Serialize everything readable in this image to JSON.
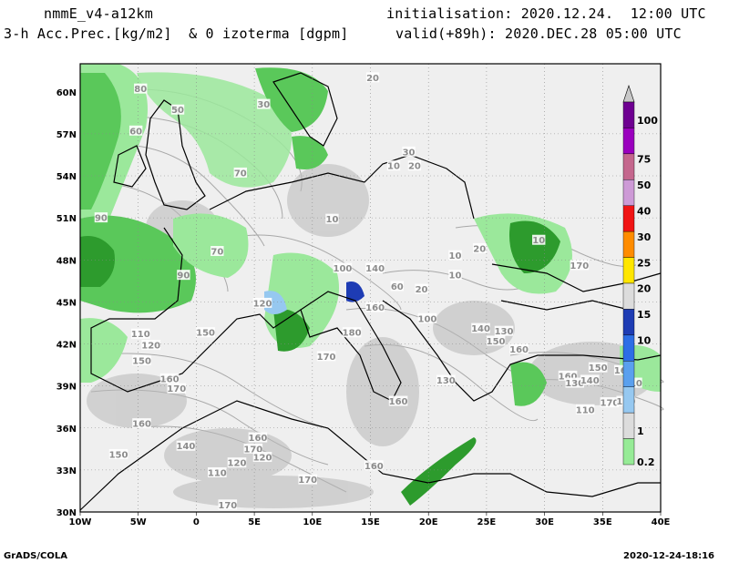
{
  "header": {
    "model": "nmmE_v4-a12km",
    "field": "3-h Acc.Prec.[kg/m2]  & 0 izoterma [dgpm]",
    "init": "initialisation: 2020.12.24.  12:00 UTC",
    "valid": "valid(+89h): 2020.DEC.28 05:00 UTC"
  },
  "footer": {
    "left": "GrADS/COLA",
    "right": "2020-12-24-18:16"
  },
  "map": {
    "lon_ticks": [
      "10W",
      "5W",
      "0",
      "5E",
      "10E",
      "15E",
      "20E",
      "25E",
      "30E",
      "35E",
      "40E"
    ],
    "lat_ticks": [
      "60N",
      "57N",
      "54N",
      "51N",
      "48N",
      "45N",
      "42N",
      "39N",
      "36N",
      "33N",
      "30N"
    ],
    "lon_range": [
      -10,
      40
    ],
    "lat_range": [
      30,
      62
    ],
    "colors": {
      "background": "#efefef",
      "contour": "#a8a8a8",
      "coast": "#000000",
      "light_green": "#9be89b",
      "green": "#5ac85a",
      "dark_green": "#2d9b2d"
    },
    "contour_labels": [
      {
        "text": "80",
        "lon": -4.8,
        "lat": 60.2
      },
      {
        "text": "50",
        "lon": -1.6,
        "lat": 58.7
      },
      {
        "text": "30",
        "lon": 5.8,
        "lat": 59.1
      },
      {
        "text": "20",
        "lon": 15.2,
        "lat": 61.0
      },
      {
        "text": "30",
        "lon": 18.3,
        "lat": 55.7
      },
      {
        "text": "10",
        "lon": 17.0,
        "lat": 54.7
      },
      {
        "text": "20",
        "lon": 18.8,
        "lat": 54.7
      },
      {
        "text": "60",
        "lon": -5.2,
        "lat": 57.2
      },
      {
        "text": "70",
        "lon": 3.8,
        "lat": 54.2
      },
      {
        "text": "90",
        "lon": -8.2,
        "lat": 51.0
      },
      {
        "text": "10",
        "lon": 11.7,
        "lat": 50.9
      },
      {
        "text": "70",
        "lon": 1.8,
        "lat": 48.6
      },
      {
        "text": "90",
        "lon": -1.1,
        "lat": 46.9
      },
      {
        "text": "100",
        "lon": 12.6,
        "lat": 47.4
      },
      {
        "text": "140",
        "lon": 15.4,
        "lat": 47.4
      },
      {
        "text": "10",
        "lon": 22.3,
        "lat": 48.3
      },
      {
        "text": "20",
        "lon": 24.4,
        "lat": 48.8
      },
      {
        "text": "10",
        "lon": 29.5,
        "lat": 49.4
      },
      {
        "text": "170",
        "lon": 33.0,
        "lat": 47.6
      },
      {
        "text": "10",
        "lon": 22.3,
        "lat": 46.9
      },
      {
        "text": "120",
        "lon": 5.7,
        "lat": 44.9
      },
      {
        "text": "160",
        "lon": 15.4,
        "lat": 44.6
      },
      {
        "text": "100",
        "lon": 19.9,
        "lat": 43.8
      },
      {
        "text": "60",
        "lon": 17.3,
        "lat": 46.1
      },
      {
        "text": "20",
        "lon": 19.4,
        "lat": 45.9
      },
      {
        "text": "110",
        "lon": -4.8,
        "lat": 42.7
      },
      {
        "text": "120",
        "lon": -3.9,
        "lat": 41.9
      },
      {
        "text": "150",
        "lon": 0.8,
        "lat": 42.8
      },
      {
        "text": "150",
        "lon": -4.7,
        "lat": 40.8
      },
      {
        "text": "180",
        "lon": 13.4,
        "lat": 42.8
      },
      {
        "text": "140",
        "lon": 24.5,
        "lat": 43.1
      },
      {
        "text": "130",
        "lon": 26.5,
        "lat": 42.9
      },
      {
        "text": "150",
        "lon": 25.8,
        "lat": 42.2
      },
      {
        "text": "160",
        "lon": 27.8,
        "lat": 41.6
      },
      {
        "text": "170",
        "lon": 11.2,
        "lat": 41.1
      },
      {
        "text": "160",
        "lon": -2.3,
        "lat": 39.5
      },
      {
        "text": "170",
        "lon": -1.7,
        "lat": 38.8
      },
      {
        "text": "130",
        "lon": 21.5,
        "lat": 39.4
      },
      {
        "text": "160",
        "lon": 17.4,
        "lat": 37.9
      },
      {
        "text": "150",
        "lon": 34.6,
        "lat": 40.3
      },
      {
        "text": "160",
        "lon": 32.0,
        "lat": 39.7
      },
      {
        "text": "130",
        "lon": 32.6,
        "lat": 39.2
      },
      {
        "text": "140",
        "lon": 33.9,
        "lat": 39.4
      },
      {
        "text": "160",
        "lon": 36.8,
        "lat": 40.1
      },
      {
        "text": "110",
        "lon": 37.6,
        "lat": 39.2
      },
      {
        "text": "170",
        "lon": 35.6,
        "lat": 37.8
      },
      {
        "text": "110",
        "lon": 33.5,
        "lat": 37.3
      },
      {
        "text": "130",
        "lon": 37.0,
        "lat": 37.9
      },
      {
        "text": "160",
        "lon": -4.7,
        "lat": 36.3
      },
      {
        "text": "160",
        "lon": 5.3,
        "lat": 35.3
      },
      {
        "text": "140",
        "lon": -0.9,
        "lat": 34.7
      },
      {
        "text": "170",
        "lon": 4.9,
        "lat": 34.5
      },
      {
        "text": "120",
        "lon": 5.7,
        "lat": 33.9
      },
      {
        "text": "150",
        "lon": -6.7,
        "lat": 34.1
      },
      {
        "text": "110",
        "lon": 1.8,
        "lat": 32.8
      },
      {
        "text": "120",
        "lon": 3.5,
        "lat": 33.5
      },
      {
        "text": "160",
        "lon": 15.3,
        "lat": 33.3
      },
      {
        "text": "170",
        "lon": 9.6,
        "lat": 32.3
      },
      {
        "text": "170",
        "lon": 2.7,
        "lat": 30.5
      }
    ]
  },
  "colorbar": {
    "labels": [
      "100",
      "75",
      "50",
      "40",
      "30",
      "25",
      "20",
      "15",
      "10",
      "1",
      "0.2"
    ],
    "colors": [
      "#6e0091",
      "#9a00be",
      "#c4678d",
      "#cd9ad6",
      "#f01414",
      "#ff8c00",
      "#ffe600",
      "#dcdcdc",
      "#1e3cb4",
      "#2d6ee6",
      "#5aa0ee",
      "#96c8f0",
      "#dcdcdc",
      "#96eb96"
    ]
  }
}
